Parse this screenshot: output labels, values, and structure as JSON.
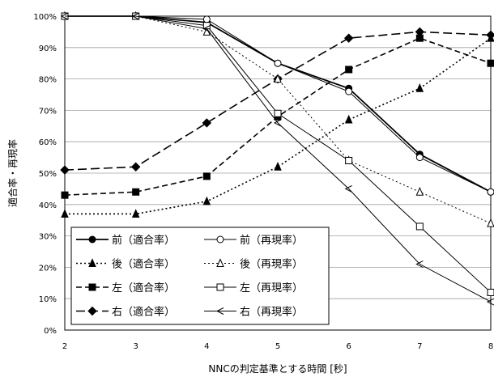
{
  "chart_data": {
    "type": "line",
    "xlabel": "NNCの判定基準とする時間 [秒]",
    "ylabel": "適合率・再現率",
    "x": [
      2,
      3,
      4,
      5,
      6,
      7,
      8
    ],
    "xlim": [
      2,
      8
    ],
    "ylim": [
      0,
      100
    ],
    "ytick_format": "%",
    "y_ticks": [
      0,
      10,
      20,
      30,
      40,
      50,
      60,
      70,
      80,
      90,
      100
    ],
    "grid": "horizontal",
    "legend_placement": "bottom-left",
    "series": [
      {
        "name": "前（適合率）",
        "marker": "circle",
        "dash": "solid",
        "filled": true,
        "width": 1.8,
        "values": [
          100,
          100,
          98,
          85,
          77,
          56,
          44
        ]
      },
      {
        "name": "後（適合率）",
        "marker": "triangle",
        "dash": "dotted",
        "filled": true,
        "width": 1.6,
        "values": [
          37,
          37,
          41,
          52,
          67,
          77,
          93
        ]
      },
      {
        "name": "左（適合率）",
        "marker": "square",
        "dash": "dashed",
        "filled": true,
        "width": 1.6,
        "values": [
          43,
          44,
          49,
          68,
          83,
          93,
          85
        ]
      },
      {
        "name": "右（適合率）",
        "marker": "diamond",
        "dash": "longdash",
        "filled": true,
        "width": 1.6,
        "values": [
          51,
          52,
          66,
          80,
          93,
          95,
          94
        ]
      },
      {
        "name": "前（再現率）",
        "marker": "circle",
        "dash": "solid",
        "filled": false,
        "width": 1.0,
        "values": [
          100,
          100,
          99,
          85,
          76,
          55,
          44
        ]
      },
      {
        "name": "後（再現率）",
        "marker": "triangle",
        "dash": "dotted",
        "filled": false,
        "width": 1.0,
        "values": [
          100,
          100,
          95,
          80,
          54,
          44,
          34
        ]
      },
      {
        "name": "左（再現率）",
        "marker": "square",
        "dash": "solid",
        "filled": false,
        "width": 1.0,
        "values": [
          100,
          100,
          97,
          69,
          54,
          33,
          12
        ]
      },
      {
        "name": "右（再現率）",
        "marker": "lt",
        "dash": "solid",
        "filled": false,
        "width": 1.0,
        "values": [
          100,
          100,
          96,
          66,
          45,
          21,
          9
        ]
      }
    ]
  }
}
